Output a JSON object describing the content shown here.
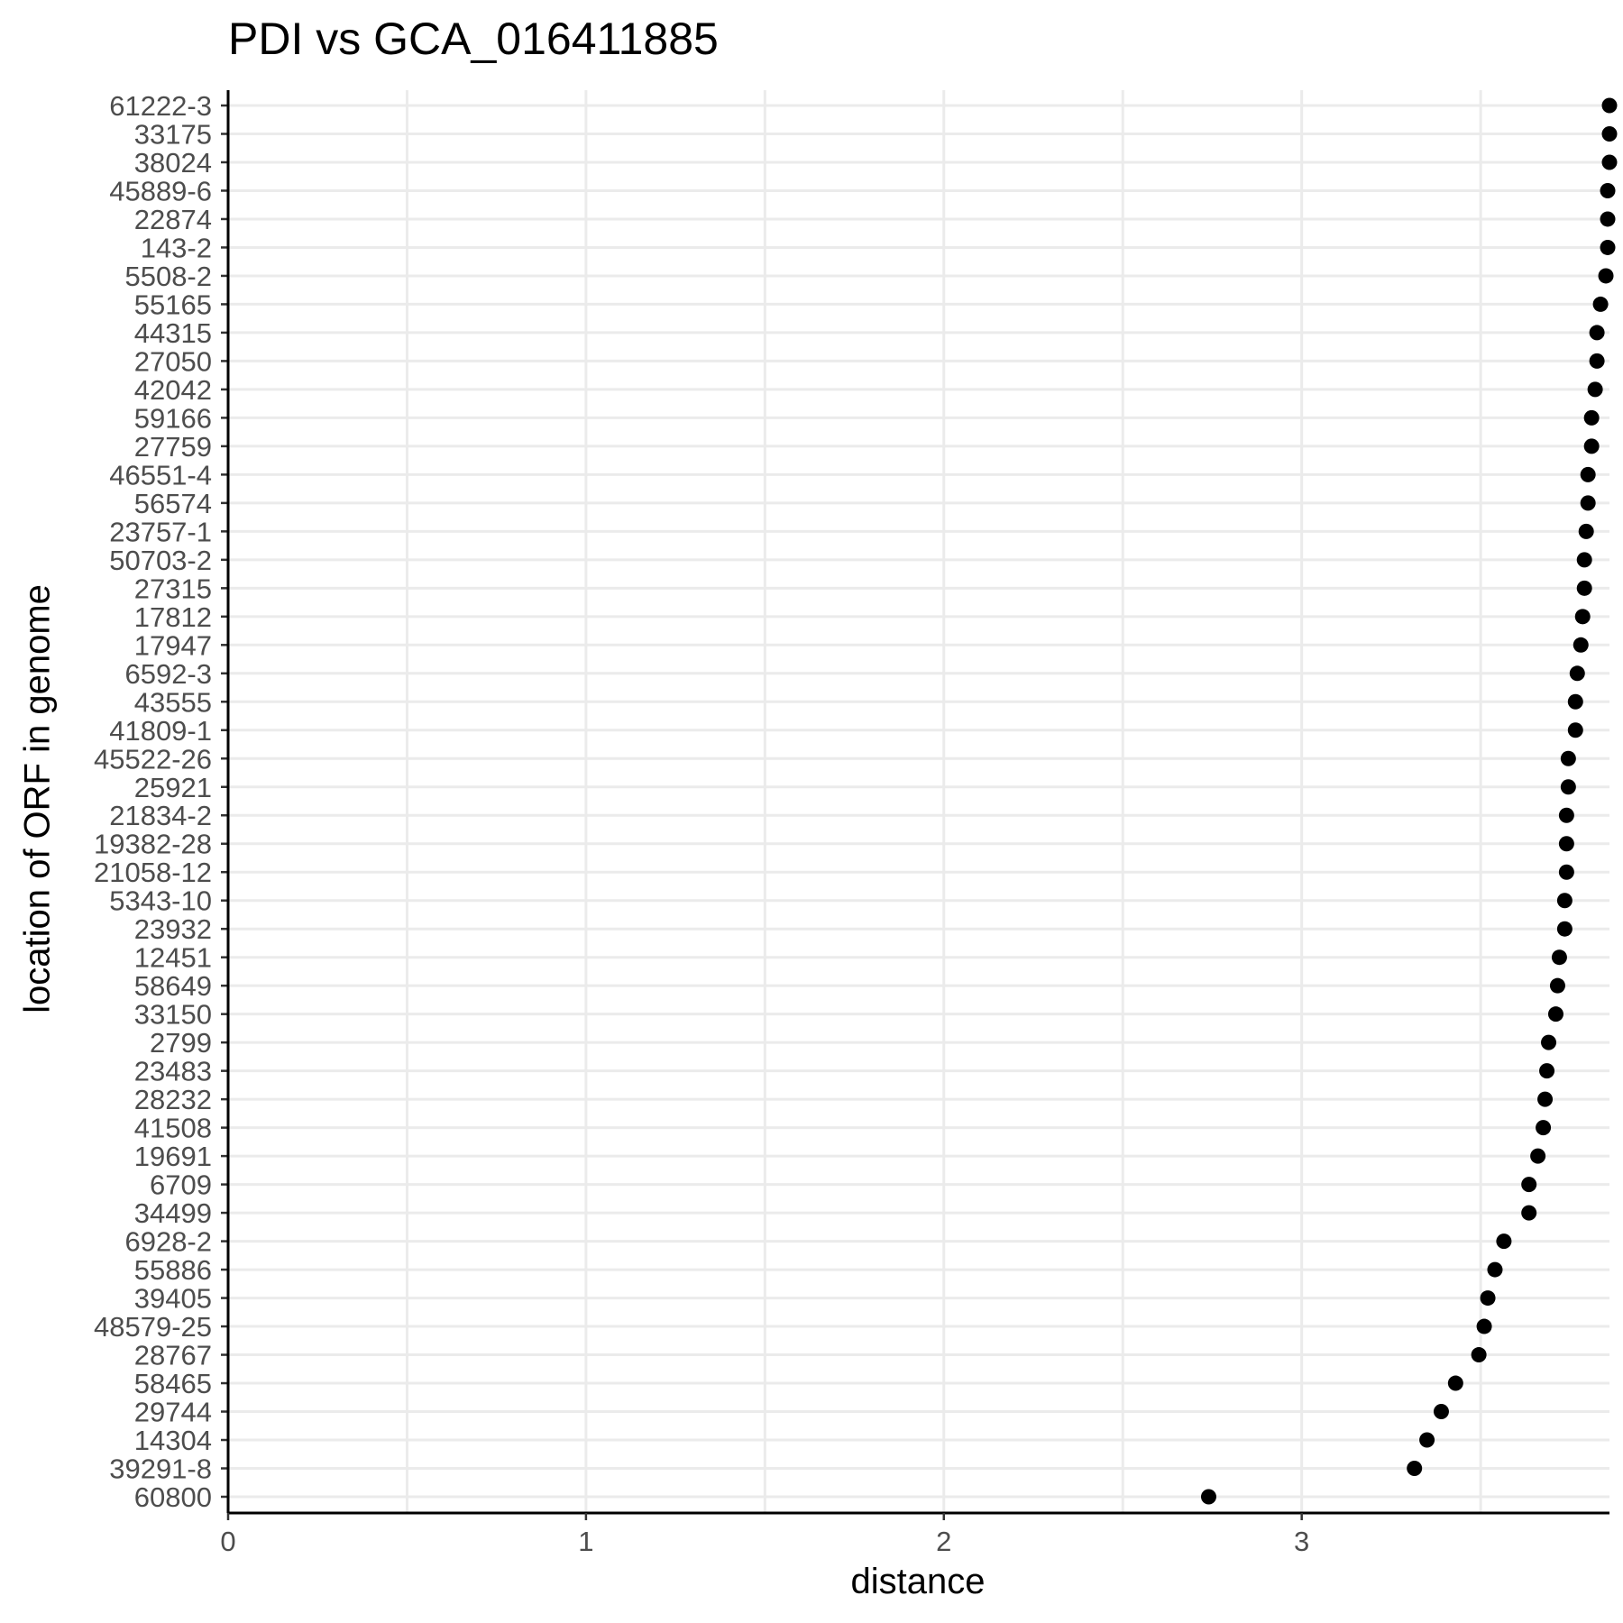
{
  "chart_data": {
    "type": "scatter",
    "title": "PDI vs GCA_016411885",
    "xlabel": "distance",
    "ylabel": "location of ORF in genome",
    "xlim": [
      0,
      3.86
    ],
    "x_ticks": [
      "0",
      "1",
      "2",
      "3"
    ],
    "grid": true,
    "points": [
      {
        "label": "61222-3",
        "x": 3.86
      },
      {
        "label": "33175",
        "x": 3.86
      },
      {
        "label": "38024",
        "x": 3.86
      },
      {
        "label": "45889-6",
        "x": 3.855
      },
      {
        "label": "22874",
        "x": 3.855
      },
      {
        "label": "143-2",
        "x": 3.855
      },
      {
        "label": "5508-2",
        "x": 3.85
      },
      {
        "label": "55165",
        "x": 3.835
      },
      {
        "label": "44315",
        "x": 3.825
      },
      {
        "label": "27050",
        "x": 3.825
      },
      {
        "label": "42042",
        "x": 3.82
      },
      {
        "label": "59166",
        "x": 3.81
      },
      {
        "label": "27759",
        "x": 3.81
      },
      {
        "label": "46551-4",
        "x": 3.8
      },
      {
        "label": "56574",
        "x": 3.8
      },
      {
        "label": "23757-1",
        "x": 3.795
      },
      {
        "label": "50703-2",
        "x": 3.79
      },
      {
        "label": "27315",
        "x": 3.79
      },
      {
        "label": "17812",
        "x": 3.785
      },
      {
        "label": "17947",
        "x": 3.78
      },
      {
        "label": "6592-3",
        "x": 3.77
      },
      {
        "label": "43555",
        "x": 3.765
      },
      {
        "label": "41809-1",
        "x": 3.765
      },
      {
        "label": "45522-26",
        "x": 3.745
      },
      {
        "label": "25921",
        "x": 3.745
      },
      {
        "label": "21834-2",
        "x": 3.74
      },
      {
        "label": "19382-28",
        "x": 3.74
      },
      {
        "label": "21058-12",
        "x": 3.74
      },
      {
        "label": "5343-10",
        "x": 3.735
      },
      {
        "label": "23932",
        "x": 3.735
      },
      {
        "label": "12451",
        "x": 3.72
      },
      {
        "label": "58649",
        "x": 3.715
      },
      {
        "label": "33150",
        "x": 3.71
      },
      {
        "label": "2799",
        "x": 3.69
      },
      {
        "label": "23483",
        "x": 3.685
      },
      {
        "label": "28232",
        "x": 3.68
      },
      {
        "label": "41508",
        "x": 3.675
      },
      {
        "label": "19691",
        "x": 3.66
      },
      {
        "label": "6709",
        "x": 3.635
      },
      {
        "label": "34499",
        "x": 3.635
      },
      {
        "label": "6928-2",
        "x": 3.565
      },
      {
        "label": "55886",
        "x": 3.54
      },
      {
        "label": "39405",
        "x": 3.52
      },
      {
        "label": "48579-25",
        "x": 3.51
      },
      {
        "label": "28767",
        "x": 3.495
      },
      {
        "label": "58465",
        "x": 3.43
      },
      {
        "label": "29744",
        "x": 3.39
      },
      {
        "label": "14304",
        "x": 3.35
      },
      {
        "label": "39291-8",
        "x": 3.315
      },
      {
        "label": "60800",
        "x": 2.74
      }
    ]
  }
}
